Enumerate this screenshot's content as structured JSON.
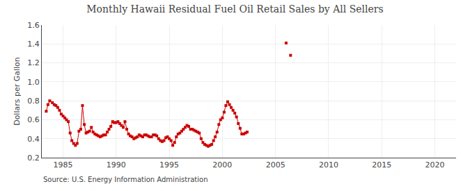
{
  "chart_data": {
    "type": "line",
    "title": "Monthly Hawaii Residual Fuel Oil Retail Sales by All Sellers",
    "ylabel": "Dollars per Gallon",
    "source": "Source: U.S. Energy Information Administration",
    "xlim": [
      1983.0,
      2022.0
    ],
    "ylim": [
      0.2,
      1.6
    ],
    "xticks": [
      1985,
      1990,
      1995,
      2000,
      2005,
      2010,
      2015,
      2020
    ],
    "yticks": [
      0.2,
      0.4,
      0.6,
      0.8,
      {
        "value": 1.0,
        "label": "1.0"
      },
      1.2,
      1.4,
      1.6
    ],
    "grid": true,
    "series": [
      {
        "type": "line",
        "color": "#cc0000",
        "marker": "square",
        "line_style": "solid",
        "x": [
          1983.42,
          1983.58,
          1983.75,
          1984.0,
          1984.17,
          1984.33,
          1984.5,
          1984.67,
          1984.83,
          1985.0,
          1985.17,
          1985.33,
          1985.5,
          1985.67,
          1985.83,
          1986.0,
          1986.17,
          1986.33,
          1986.5,
          1986.67,
          1986.83,
          1987.0,
          1987.17,
          1987.33,
          1987.5,
          1987.67,
          1987.83,
          1988.0,
          1988.17,
          1988.33,
          1988.5,
          1988.67,
          1988.83,
          1989.0,
          1989.17,
          1989.33,
          1989.5,
          1989.67,
          1989.83,
          1990.0,
          1990.17,
          1990.33,
          1990.5,
          1990.67,
          1990.83,
          1991.0,
          1991.17,
          1991.33,
          1991.5,
          1991.67,
          1991.83,
          1992.0,
          1992.17,
          1992.33,
          1992.5,
          1992.67,
          1992.83,
          1993.0,
          1993.17,
          1993.33,
          1993.5,
          1993.67,
          1993.83,
          1994.0,
          1994.17,
          1994.33,
          1994.5,
          1994.67,
          1994.83,
          1995.0,
          1995.17,
          1995.33,
          1995.5,
          1995.67,
          1995.83,
          1996.0,
          1996.17,
          1996.33,
          1996.5,
          1996.67,
          1996.83,
          1997.0,
          1997.17,
          1997.33,
          1997.5,
          1997.67,
          1997.83,
          1998.0,
          1998.17,
          1998.33,
          1998.5,
          1998.67,
          1998.83,
          1999.0,
          1999.17,
          1999.33,
          1999.5,
          1999.67,
          1999.83,
          2000.0,
          2000.17,
          2000.33,
          2000.5,
          2000.67,
          2000.83,
          2001.0,
          2001.17,
          2001.33,
          2001.5,
          2001.67,
          2001.83,
          2002.0,
          2002.17,
          2002.33
        ],
        "values": [
          0.69,
          0.76,
          0.8,
          0.78,
          0.76,
          0.75,
          0.73,
          0.7,
          0.66,
          0.64,
          0.62,
          0.6,
          0.58,
          0.46,
          0.38,
          0.35,
          0.33,
          0.35,
          0.48,
          0.5,
          0.75,
          0.55,
          0.46,
          0.47,
          0.48,
          0.52,
          0.47,
          0.45,
          0.44,
          0.43,
          0.42,
          0.43,
          0.44,
          0.44,
          0.47,
          0.5,
          0.53,
          0.58,
          0.57,
          0.57,
          0.58,
          0.56,
          0.54,
          0.52,
          0.58,
          0.5,
          0.45,
          0.43,
          0.42,
          0.4,
          0.41,
          0.42,
          0.44,
          0.43,
          0.42,
          0.44,
          0.44,
          0.43,
          0.42,
          0.42,
          0.44,
          0.44,
          0.43,
          0.4,
          0.38,
          0.37,
          0.38,
          0.41,
          0.42,
          0.4,
          0.38,
          0.33,
          0.36,
          0.42,
          0.45,
          0.46,
          0.48,
          0.5,
          0.52,
          0.54,
          0.53,
          0.5,
          0.5,
          0.49,
          0.48,
          0.47,
          0.46,
          0.4,
          0.36,
          0.34,
          0.33,
          0.32,
          0.33,
          0.34,
          0.38,
          0.42,
          0.47,
          0.55,
          0.6,
          0.62,
          0.68,
          0.75,
          0.79,
          0.76,
          0.73,
          0.7,
          0.67,
          0.63,
          0.56,
          0.51,
          0.45,
          0.45,
          0.46,
          0.47
        ]
      },
      {
        "type": "scatter",
        "color": "#cc0000",
        "marker": "square",
        "x": [
          2006.0,
          2006.42
        ],
        "values": [
          1.41,
          1.28
        ]
      }
    ]
  }
}
